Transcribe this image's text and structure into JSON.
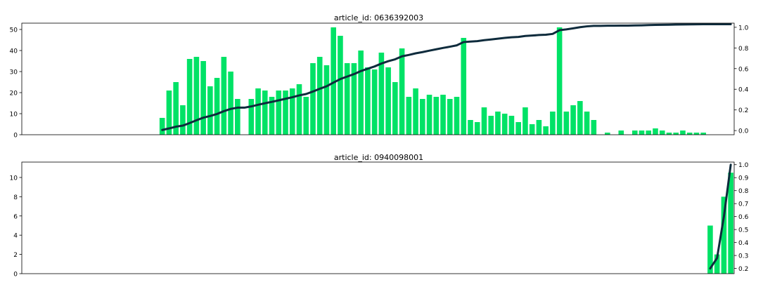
{
  "chart_data": [
    {
      "type": "bar",
      "title": "article_id: 0636392003",
      "xlabel": "",
      "ylabel": "",
      "n_slots": 104,
      "bar_values": [
        0,
        0,
        0,
        0,
        0,
        0,
        0,
        0,
        0,
        0,
        0,
        0,
        0,
        0,
        0,
        0,
        0,
        0,
        0,
        0,
        8,
        21,
        25,
        14,
        36,
        37,
        35,
        23,
        27,
        37,
        30,
        17,
        0,
        17,
        22,
        21,
        18,
        21,
        21,
        22,
        24,
        18,
        34,
        37,
        33,
        51,
        47,
        34,
        34,
        40,
        32,
        31,
        39,
        32,
        25,
        41,
        18,
        22,
        17,
        19,
        18,
        19,
        17,
        18,
        46,
        7,
        6,
        13,
        9,
        11,
        10,
        9,
        6,
        13,
        5,
        7,
        4,
        11,
        51,
        11,
        14,
        16,
        11,
        7,
        0,
        1,
        0,
        2,
        0,
        2,
        2,
        2,
        3,
        2,
        1,
        1,
        2,
        1,
        1,
        1,
        0,
        0,
        0,
        0
      ],
      "ylim": [
        0,
        53
      ],
      "yticks": [
        0,
        10,
        20,
        30,
        40,
        50
      ],
      "secondary": {
        "label": "",
        "ylim": [
          -0.04,
          1.04
        ],
        "yticks": [
          "0.0",
          "0.2",
          "0.4",
          "0.6",
          "0.8",
          "1.0"
        ],
        "tick_values": [
          0,
          0.2,
          0.4,
          0.6,
          0.8,
          1.0
        ],
        "points": [
          [
            20,
            0.006
          ],
          [
            21,
            0.021
          ],
          [
            22,
            0.038
          ],
          [
            23,
            0.048
          ],
          [
            24,
            0.073
          ],
          [
            25,
            0.1
          ],
          [
            26,
            0.125
          ],
          [
            27,
            0.141
          ],
          [
            28,
            0.161
          ],
          [
            29,
            0.188
          ],
          [
            30,
            0.21
          ],
          [
            31,
            0.222
          ],
          [
            32,
            0.222
          ],
          [
            33,
            0.234
          ],
          [
            34,
            0.25
          ],
          [
            35,
            0.265
          ],
          [
            36,
            0.278
          ],
          [
            37,
            0.293
          ],
          [
            38,
            0.308
          ],
          [
            39,
            0.323
          ],
          [
            40,
            0.341
          ],
          [
            41,
            0.354
          ],
          [
            42,
            0.378
          ],
          [
            43,
            0.405
          ],
          [
            44,
            0.429
          ],
          [
            45,
            0.465
          ],
          [
            46,
            0.499
          ],
          [
            47,
            0.523
          ],
          [
            48,
            0.547
          ],
          [
            49,
            0.576
          ],
          [
            50,
            0.599
          ],
          [
            51,
            0.621
          ],
          [
            52,
            0.649
          ],
          [
            53,
            0.672
          ],
          [
            54,
            0.69
          ],
          [
            55,
            0.719
          ],
          [
            56,
            0.732
          ],
          [
            57,
            0.748
          ],
          [
            58,
            0.76
          ],
          [
            59,
            0.774
          ],
          [
            60,
            0.787
          ],
          [
            61,
            0.8
          ],
          [
            62,
            0.812
          ],
          [
            63,
            0.825
          ],
          [
            64,
            0.857
          ],
          [
            65,
            0.862
          ],
          [
            66,
            0.866
          ],
          [
            67,
            0.875
          ],
          [
            68,
            0.882
          ],
          [
            69,
            0.89
          ],
          [
            70,
            0.897
          ],
          [
            71,
            0.903
          ],
          [
            72,
            0.907
          ],
          [
            73,
            0.916
          ],
          [
            74,
            0.92
          ],
          [
            75,
            0.925
          ],
          [
            76,
            0.928
          ],
          [
            77,
            0.936
          ],
          [
            78,
            0.972
          ],
          [
            79,
            0.98
          ],
          [
            80,
            0.99
          ],
          [
            81,
            1.001
          ],
          [
            82,
            1.009
          ],
          [
            83,
            1.014
          ],
          [
            84,
            1.014
          ],
          [
            85,
            1.015
          ],
          [
            86,
            1.015
          ],
          [
            87,
            1.016
          ],
          [
            88,
            1.016
          ],
          [
            89,
            1.018
          ],
          [
            90,
            1.019
          ],
          [
            91,
            1.021
          ],
          [
            92,
            1.023
          ],
          [
            93,
            1.024
          ],
          [
            94,
            1.025
          ],
          [
            95,
            1.026
          ],
          [
            96,
            1.027
          ],
          [
            97,
            1.028
          ],
          [
            98,
            1.029
          ],
          [
            99,
            1.03
          ],
          [
            100,
            1.03
          ],
          [
            101,
            1.03
          ],
          [
            102,
            1.03
          ],
          [
            103,
            1.03
          ]
        ]
      },
      "colors": {
        "bar": "#00e266",
        "line": "#0e2b3c",
        "axis": "#000000"
      },
      "grid": false
    },
    {
      "type": "bar",
      "title": "article_id: 0940098001",
      "xlabel": "",
      "ylabel": "",
      "n_slots": 104,
      "bar_values": [
        0,
        0,
        0,
        0,
        0,
        0,
        0,
        0,
        0,
        0,
        0,
        0,
        0,
        0,
        0,
        0,
        0,
        0,
        0,
        0,
        0,
        0,
        0,
        0,
        0,
        0,
        0,
        0,
        0,
        0,
        0,
        0,
        0,
        0,
        0,
        0,
        0,
        0,
        0,
        0,
        0,
        0,
        0,
        0,
        0,
        0,
        0,
        0,
        0,
        0,
        0,
        0,
        0,
        0,
        0,
        0,
        0,
        0,
        0,
        0,
        0,
        0,
        0,
        0,
        0,
        0,
        0,
        0,
        0,
        0,
        0,
        0,
        0,
        0,
        0,
        0,
        0,
        0,
        0,
        0,
        0,
        0,
        0,
        0,
        0,
        0,
        0,
        0,
        0,
        0,
        0,
        0,
        0,
        0,
        0,
        0,
        0,
        0,
        0,
        0,
        5,
        2,
        8,
        10.5
      ],
      "ylim": [
        0,
        11.6
      ],
      "yticks": [
        0,
        2,
        4,
        6,
        8,
        10
      ],
      "secondary": {
        "label": "",
        "ylim": [
          0.16,
          1.02
        ],
        "yticks": [
          "0.2",
          "0.3",
          "0.4",
          "0.5",
          "0.6",
          "0.7",
          "0.8",
          "0.9",
          "1.0"
        ],
        "tick_values": [
          0.2,
          0.3,
          0.4,
          0.5,
          0.6,
          0.7,
          0.8,
          0.9,
          1.0
        ],
        "points": [
          [
            100,
            0.2
          ],
          [
            101,
            0.28
          ],
          [
            102,
            0.6
          ],
          [
            103,
            1.0
          ]
        ]
      },
      "colors": {
        "bar": "#00e266",
        "line": "#0e2b3c",
        "axis": "#000000"
      },
      "grid": false
    }
  ]
}
